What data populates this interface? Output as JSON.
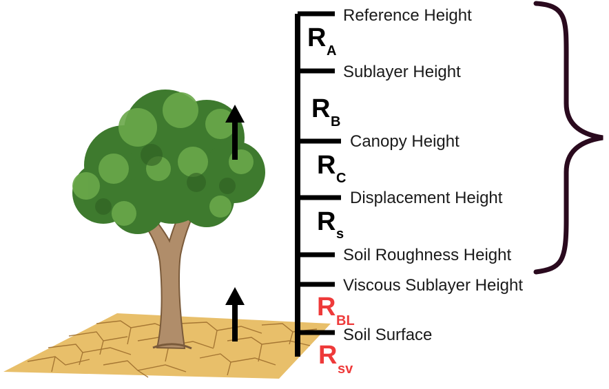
{
  "colors": {
    "axis": "#000000",
    "brace": "#2a0a1e",
    "resistance_dark": "#000000",
    "resistance_red": "#ee3a3a",
    "soil": "#e8bf6a",
    "soil_crack": "#9a6a2a",
    "trunk": "#b08d6a",
    "foliage_dark": "#3e7a2e",
    "foliage_light": "#6aa84a"
  },
  "levels": [
    {
      "label": "Reference Height"
    },
    {
      "label": "Sublayer Height"
    },
    {
      "label": "Canopy Height"
    },
    {
      "label": "Displacement Height"
    },
    {
      "label": "Soil Roughness Height"
    },
    {
      "label": "Viscous Sublayer Height"
    },
    {
      "label": "Soil Surface"
    }
  ],
  "resistances": [
    {
      "main": "R",
      "sub": "A",
      "color": "dark"
    },
    {
      "main": "R",
      "sub": "B",
      "color": "dark"
    },
    {
      "main": "R",
      "sub": "C",
      "color": "dark"
    },
    {
      "main": "R",
      "sub": "s",
      "color": "dark"
    },
    {
      "main": "R",
      "sub": "BL",
      "color": "red"
    },
    {
      "main": "R",
      "sub": "sv",
      "color": "red"
    }
  ],
  "icons": {
    "tree": "tree-icon",
    "soil": "cracked-soil-icon",
    "arrow_upper": "up-arrow-icon",
    "arrow_lower": "up-arrow-icon",
    "brace": "right-curly-brace-icon"
  }
}
